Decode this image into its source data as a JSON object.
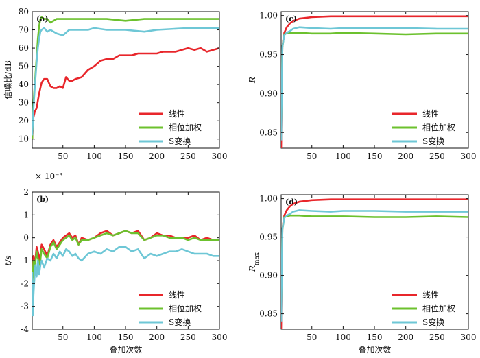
{
  "colors": {
    "linear": "#e8262b",
    "phase": "#6cc12e",
    "stransform": "#6ec7d6"
  },
  "legend_labels": [
    "线性",
    "相位加权",
    "S变换"
  ],
  "chart_data": [
    {
      "panel": "(a)",
      "type": "line",
      "ylabel": "信噪比/dB",
      "xlabel": "",
      "xlim": [
        1,
        300
      ],
      "ylim": [
        5,
        80
      ],
      "xticks": [
        50,
        100,
        150,
        200,
        250,
        300
      ],
      "yticks": [
        10,
        20,
        30,
        40,
        50,
        60,
        70,
        80
      ],
      "ytick_labels": [
        "10",
        "20",
        "30",
        "40",
        "50",
        "60",
        "70",
        "80"
      ],
      "legend": "bottom-right",
      "series": [
        {
          "name": "线性",
          "x": [
            1,
            3,
            5,
            8,
            12,
            16,
            20,
            25,
            30,
            35,
            40,
            45,
            50,
            55,
            60,
            65,
            70,
            80,
            90,
            100,
            110,
            120,
            130,
            140,
            150,
            160,
            170,
            180,
            190,
            200,
            210,
            220,
            230,
            240,
            250,
            260,
            270,
            280,
            290,
            300
          ],
          "y": [
            10,
            22,
            25,
            27,
            35,
            41,
            43,
            43,
            39,
            38,
            38,
            39,
            38,
            44,
            42,
            42,
            43,
            44,
            48,
            50,
            53,
            54,
            54,
            56,
            56,
            56,
            57,
            57,
            57,
            57,
            58,
            58,
            58,
            59,
            60,
            59,
            60,
            58,
            59,
            60
          ]
        },
        {
          "name": "相位加权",
          "x": [
            1,
            3,
            5,
            8,
            10,
            12,
            14,
            16,
            20,
            25,
            30,
            40,
            50,
            60,
            70,
            80,
            100,
            120,
            150,
            180,
            200,
            250,
            300
          ],
          "y": [
            10,
            30,
            40,
            55,
            65,
            72,
            76,
            77,
            76,
            76,
            74,
            76,
            76,
            76,
            76,
            76,
            76,
            76,
            75,
            76,
            76,
            76,
            76
          ]
        },
        {
          "name": "S变换",
          "x": [
            1,
            3,
            5,
            8,
            10,
            12,
            14,
            16,
            20,
            25,
            30,
            40,
            50,
            60,
            70,
            80,
            90,
            100,
            120,
            150,
            180,
            200,
            250,
            300
          ],
          "y": [
            12,
            27,
            38,
            52,
            60,
            65,
            69,
            70,
            71,
            69,
            70,
            68,
            67,
            70,
            70,
            70,
            70,
            71,
            70,
            70,
            69,
            70,
            71,
            71
          ]
        }
      ]
    },
    {
      "panel": "(c)",
      "type": "line",
      "ylabel": "R",
      "xlabel": "",
      "xlim": [
        1,
        300
      ],
      "ylim": [
        0.83,
        1.005
      ],
      "xticks": [
        50,
        100,
        150,
        200,
        250,
        300
      ],
      "yticks": [
        0.85,
        0.9,
        0.95,
        1.0
      ],
      "ytick_labels": [
        "0.85",
        "0.90",
        "0.95",
        "1.00"
      ],
      "legend": "bottom-right",
      "series": [
        {
          "name": "线性",
          "x": [
            1,
            3,
            6,
            10,
            15,
            20,
            30,
            50,
            80,
            100,
            150,
            200,
            250,
            300
          ],
          "y": [
            0.83,
            0.96,
            0.978,
            0.985,
            0.99,
            0.993,
            0.996,
            0.998,
            0.999,
            0.999,
            0.999,
            0.999,
            0.999,
            0.999
          ]
        },
        {
          "name": "相位加权",
          "x": [
            1,
            3,
            6,
            10,
            15,
            20,
            30,
            50,
            80,
            100,
            150,
            200,
            250,
            300
          ],
          "y": [
            0.85,
            0.96,
            0.976,
            0.978,
            0.978,
            0.978,
            0.978,
            0.977,
            0.977,
            0.978,
            0.977,
            0.976,
            0.977,
            0.977
          ]
        },
        {
          "name": "S变换",
          "x": [
            1,
            3,
            6,
            10,
            15,
            20,
            30,
            50,
            80,
            100,
            150,
            200,
            250,
            300
          ],
          "y": [
            0.84,
            0.96,
            0.975,
            0.978,
            0.98,
            0.983,
            0.985,
            0.984,
            0.983,
            0.984,
            0.984,
            0.984,
            0.983,
            0.983
          ]
        }
      ]
    },
    {
      "panel": "(b)",
      "type": "line",
      "ylabel": "t/s",
      "xlabel": "叠加次数",
      "scale_note": "× 10⁻³",
      "xlim": [
        1,
        300
      ],
      "ylim": [
        -4,
        2
      ],
      "xticks": [
        50,
        100,
        150,
        200,
        250,
        300
      ],
      "yticks": [
        -4,
        -3,
        -2,
        -1,
        0,
        1,
        2
      ],
      "ytick_labels": [
        "-4",
        "-3",
        "-2",
        "-1",
        "0",
        "1",
        "2"
      ],
      "legend": "bottom-right",
      "series": [
        {
          "name": "线性",
          "x": [
            1,
            3,
            5,
            8,
            10,
            13,
            16,
            20,
            25,
            30,
            35,
            40,
            45,
            50,
            55,
            60,
            65,
            70,
            75,
            80,
            90,
            100,
            110,
            120,
            130,
            140,
            150,
            160,
            170,
            180,
            190,
            200,
            210,
            220,
            230,
            240,
            250,
            260,
            270,
            280,
            290,
            300
          ],
          "y": [
            -2.0,
            -0.8,
            -1.2,
            -0.4,
            -0.6,
            -1.0,
            -0.3,
            -0.5,
            -0.8,
            -0.3,
            -0.1,
            -0.4,
            -0.2,
            0.0,
            0.1,
            0.2,
            0.0,
            0.1,
            -0.3,
            0.0,
            -0.1,
            0.0,
            0.2,
            0.3,
            0.1,
            0.2,
            0.3,
            0.2,
            0.3,
            -0.1,
            0.0,
            0.2,
            0.1,
            0.1,
            0.0,
            0.0,
            0.0,
            0.1,
            -0.1,
            0.0,
            -0.1,
            -0.1
          ]
        },
        {
          "name": "相位加权",
          "x": [
            1,
            3,
            5,
            8,
            10,
            13,
            16,
            20,
            25,
            30,
            35,
            40,
            45,
            50,
            55,
            60,
            65,
            70,
            75,
            80,
            90,
            100,
            110,
            120,
            130,
            140,
            150,
            160,
            170,
            180,
            190,
            200,
            210,
            220,
            230,
            240,
            250,
            260,
            270,
            280,
            290,
            300
          ],
          "y": [
            -2.2,
            -1.0,
            -1.3,
            -0.6,
            -0.9,
            -1.2,
            -0.5,
            -0.7,
            -0.9,
            -0.4,
            -0.2,
            -0.5,
            -0.3,
            -0.1,
            0.0,
            0.1,
            -0.1,
            0.0,
            -0.3,
            -0.1,
            -0.1,
            0.0,
            0.1,
            0.2,
            0.1,
            0.2,
            0.3,
            0.2,
            0.2,
            -0.1,
            0.0,
            0.1,
            0.1,
            0.0,
            0.0,
            0.0,
            -0.1,
            0.0,
            -0.1,
            -0.1,
            -0.1,
            -0.1
          ]
        },
        {
          "name": "S变换",
          "x": [
            1,
            2,
            3,
            4,
            6,
            8,
            10,
            12,
            14,
            16,
            20,
            25,
            30,
            35,
            40,
            45,
            50,
            55,
            60,
            65,
            70,
            75,
            80,
            90,
            100,
            110,
            120,
            130,
            140,
            150,
            160,
            170,
            180,
            190,
            200,
            210,
            220,
            230,
            240,
            250,
            260,
            270,
            280,
            290,
            300
          ],
          "y": [
            -1.5,
            -3.4,
            -2.5,
            -2.0,
            -1.2,
            -1.7,
            -1.0,
            -1.6,
            -1.2,
            -1.0,
            -1.3,
            -0.9,
            -1.0,
            -0.7,
            -0.9,
            -0.6,
            -0.8,
            -0.5,
            -0.6,
            -0.8,
            -0.7,
            -0.9,
            -1.0,
            -0.7,
            -0.6,
            -0.7,
            -0.5,
            -0.6,
            -0.4,
            -0.4,
            -0.6,
            -0.5,
            -0.9,
            -0.7,
            -0.8,
            -0.7,
            -0.6,
            -0.6,
            -0.5,
            -0.6,
            -0.7,
            -0.7,
            -0.7,
            -0.8,
            -0.8
          ]
        }
      ]
    },
    {
      "panel": "(d)",
      "type": "line",
      "ylabel": "R",
      "ylabel_sub": "max",
      "xlabel": "叠加次数",
      "xlim": [
        1,
        300
      ],
      "ylim": [
        0.83,
        1.005
      ],
      "xticks": [
        50,
        100,
        150,
        200,
        250,
        300
      ],
      "yticks": [
        0.85,
        0.9,
        0.95,
        1.0
      ],
      "ytick_labels": [
        "0.85",
        "0.90",
        "0.95",
        "1.00"
      ],
      "legend": "bottom-right",
      "series": [
        {
          "name": "线性",
          "x": [
            1,
            3,
            6,
            10,
            15,
            20,
            30,
            50,
            80,
            100,
            150,
            200,
            250,
            300
          ],
          "y": [
            0.83,
            0.96,
            0.978,
            0.985,
            0.99,
            0.993,
            0.996,
            0.998,
            0.999,
            0.999,
            0.999,
            0.999,
            0.999,
            0.999
          ]
        },
        {
          "name": "相位加权",
          "x": [
            1,
            3,
            6,
            10,
            15,
            20,
            30,
            50,
            80,
            100,
            150,
            200,
            250,
            300
          ],
          "y": [
            0.85,
            0.96,
            0.976,
            0.977,
            0.978,
            0.978,
            0.978,
            0.977,
            0.977,
            0.977,
            0.976,
            0.976,
            0.977,
            0.976
          ]
        },
        {
          "name": "S变换",
          "x": [
            1,
            3,
            6,
            10,
            15,
            20,
            30,
            50,
            80,
            100,
            150,
            200,
            250,
            300
          ],
          "y": [
            0.84,
            0.96,
            0.975,
            0.978,
            0.98,
            0.983,
            0.985,
            0.984,
            0.983,
            0.984,
            0.984,
            0.983,
            0.983,
            0.983
          ]
        }
      ]
    }
  ]
}
